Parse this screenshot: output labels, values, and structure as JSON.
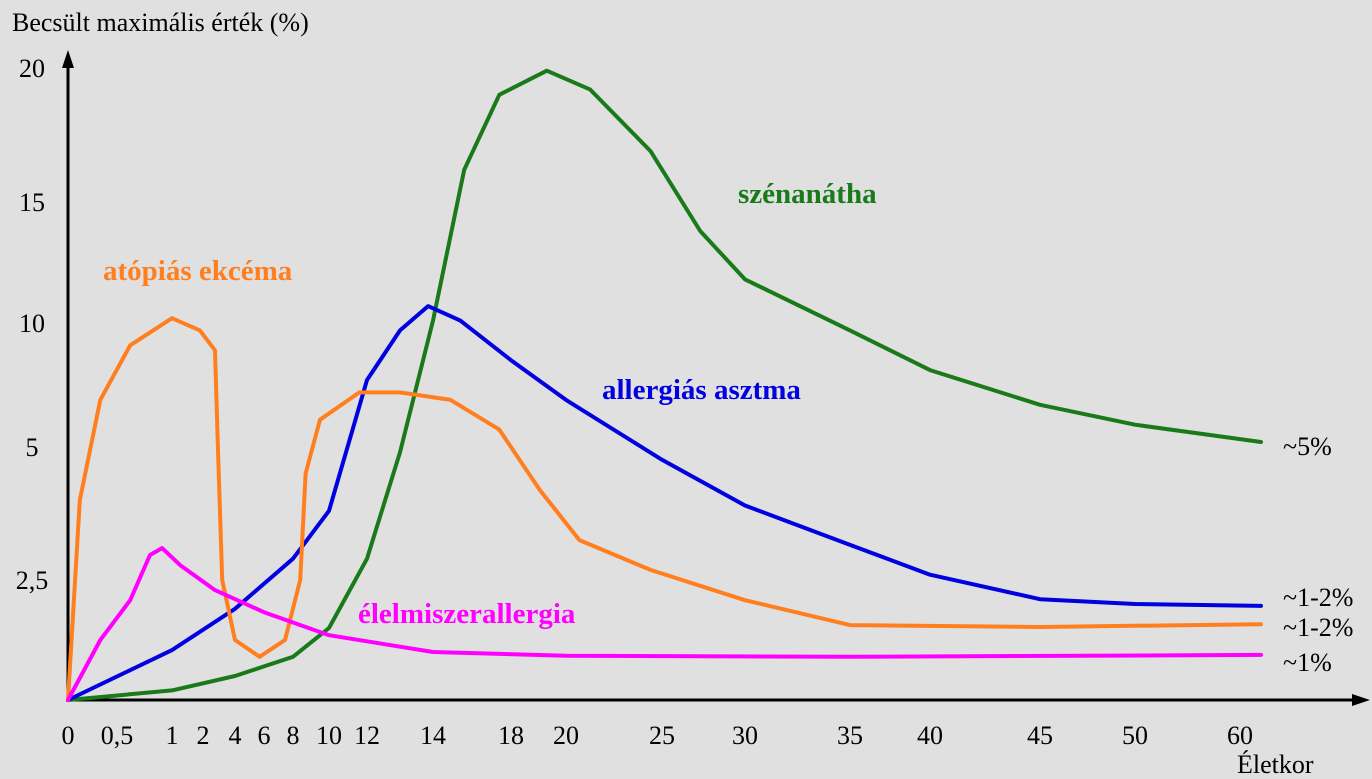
{
  "chart_data": {
    "type": "line",
    "y_label": "Becsült maximális érték (%)",
    "x_label": "Életkor",
    "xlim": [
      0,
      62
    ],
    "xticks": [
      0,
      {
        "value": 0.5,
        "label": "0,5"
      },
      1,
      2,
      4,
      6,
      8,
      10,
      12,
      14,
      18,
      20,
      25,
      30,
      35,
      40,
      45,
      50,
      60
    ],
    "ylim": [
      0,
      20
    ],
    "yticks": [
      {
        "value": 2.5,
        "label": "2,5"
      },
      5,
      10,
      15,
      20
    ],
    "grid": false,
    "series": [
      {
        "name": "szénanátha",
        "color": "#1a7a1a",
        "end_label": "~5%",
        "x": [
          0,
          1,
          4,
          6,
          8,
          10,
          12,
          13,
          14,
          15.6,
          17.4,
          19.3,
          21.25,
          24.4,
          27.3,
          30,
          35,
          40,
          45,
          50,
          62
        ],
        "y": [
          0,
          0.2,
          0.5,
          0.7,
          0.9,
          1.5,
          2.9,
          4.9,
          10.1,
          16.2,
          19,
          19.9,
          19.2,
          16.9,
          13.8,
          11.8,
          9.7,
          8.1,
          6.7,
          5.9,
          5.2
        ]
      },
      {
        "name": "allergiás asztma",
        "color": "#0000e0",
        "end_label": "~1-2%",
        "x": [
          0,
          1,
          4,
          8,
          10,
          12,
          13,
          13.85,
          15.4,
          18,
          20,
          25,
          30,
          35,
          40,
          45,
          50,
          62
        ],
        "y": [
          0,
          1.04,
          1.9,
          2.9,
          3.8,
          7.7,
          9.7,
          10.7,
          10.1,
          8.5,
          6.9,
          4.76,
          3.9,
          3.16,
          2.6,
          2.1,
          2,
          1.96
        ]
      },
      {
        "name": "atópiás ekcéma",
        "color": "#ff7f1f",
        "end_label": "~1-2%",
        "x": [
          0,
          0.12,
          0.33,
          0.62,
          1,
          1.9,
          2.75,
          2.94,
          3.2,
          4,
          5.7,
          7.45,
          8.4,
          8.7,
          9.5,
          11.6,
          13,
          14.9,
          17.4,
          19.05,
          20.7,
          24.4,
          30,
          35,
          45,
          62
        ],
        "y": [
          0,
          4,
          6.9,
          9.1,
          10.2,
          9.7,
          8.9,
          4.94,
          2.5,
          1.25,
          0.9,
          1.25,
          2.5,
          4.5,
          6.1,
          7.2,
          7.2,
          6.9,
          5.7,
          4.19,
          3.25,
          2.69,
          2.08,
          1.56,
          1.52,
          1.58
        ]
      },
      {
        "name": "élelmiszerallergia",
        "color": "#ff00ff",
        "end_label": "~1%",
        "x": [
          0,
          0.33,
          0.62,
          0.8,
          0.91,
          1.26,
          2.75,
          6,
          10,
          14,
          20,
          35,
          62
        ],
        "y": [
          0,
          1.25,
          2.08,
          2.97,
          3.1,
          2.78,
          2.29,
          1.83,
          1.35,
          1,
          0.92,
          0.9,
          0.94
        ]
      }
    ]
  }
}
